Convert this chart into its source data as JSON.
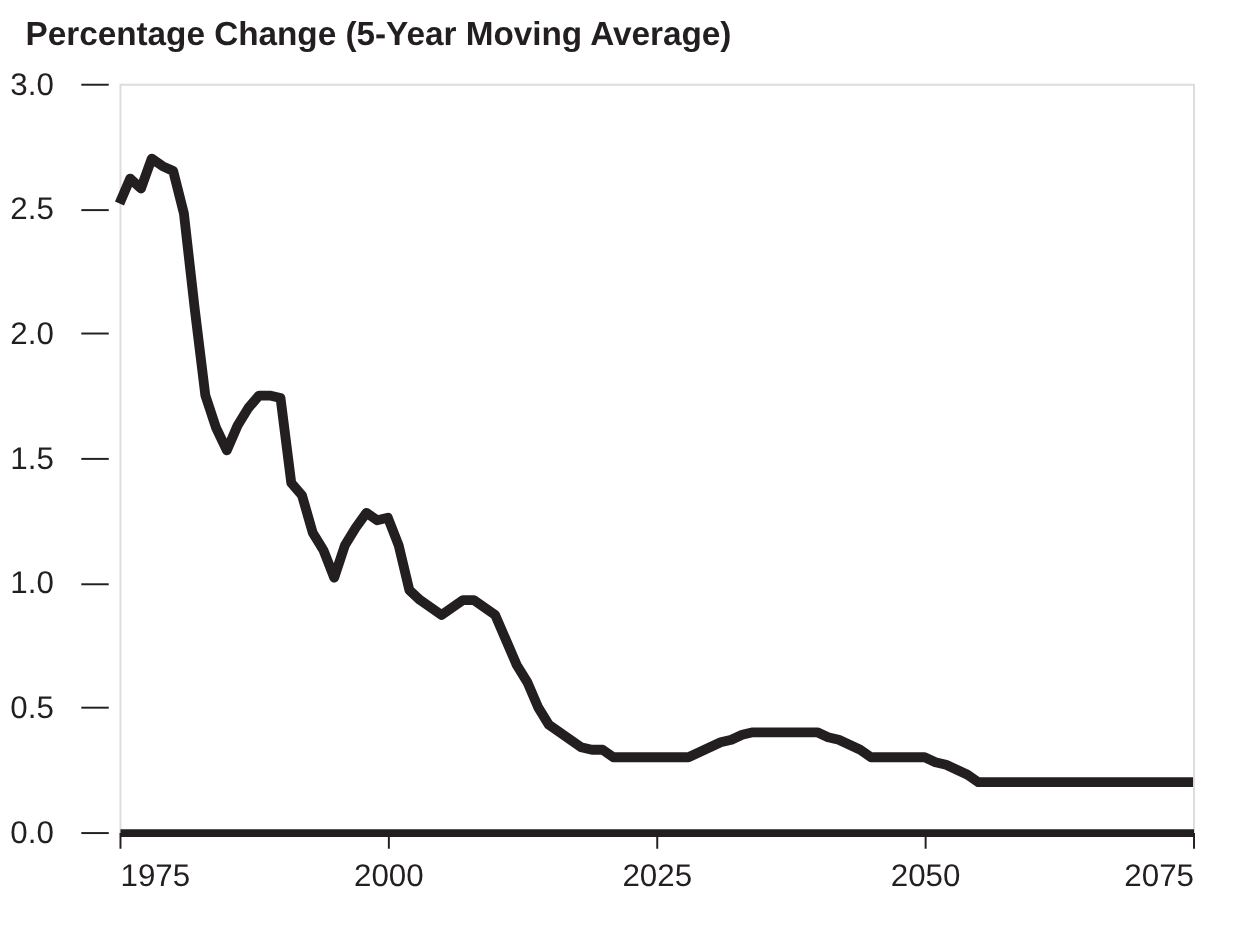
{
  "chart_data": {
    "type": "line",
    "title": "Percentage Change (5-Year Moving Average)",
    "x": [
      1975,
      1976,
      1977,
      1978,
      1979,
      1980,
      1981,
      1982,
      1983,
      1984,
      1985,
      1986,
      1987,
      1988,
      1989,
      1990,
      1991,
      1992,
      1993,
      1994,
      1995,
      1996,
      1997,
      1998,
      1999,
      2000,
      2001,
      2002,
      2003,
      2004,
      2005,
      2006,
      2007,
      2008,
      2009,
      2010,
      2011,
      2012,
      2013,
      2014,
      2015,
      2016,
      2017,
      2018,
      2019,
      2020,
      2021,
      2025,
      2028,
      2029,
      2030,
      2031,
      2032,
      2033,
      2034,
      2040,
      2041,
      2042,
      2043,
      2044,
      2045,
      2050,
      2051,
      2052,
      2053,
      2054,
      2055,
      2075
    ],
    "series": [
      {
        "color": "#231f20",
        "values": [
          2.52,
          2.62,
          2.58,
          2.7,
          2.67,
          2.65,
          2.48,
          2.1,
          1.75,
          1.62,
          1.53,
          1.63,
          1.7,
          1.75,
          1.75,
          1.74,
          1.4,
          1.35,
          1.2,
          1.13,
          1.02,
          1.15,
          1.22,
          1.28,
          1.25,
          1.26,
          1.15,
          0.97,
          0.93,
          0.9,
          0.87,
          0.9,
          0.93,
          0.93,
          0.9,
          0.87,
          0.77,
          0.67,
          0.6,
          0.5,
          0.43,
          0.4,
          0.37,
          0.34,
          0.33,
          0.33,
          0.3,
          0.3,
          0.3,
          0.32,
          0.34,
          0.36,
          0.37,
          0.39,
          0.4,
          0.4,
          0.38,
          0.37,
          0.35,
          0.33,
          0.3,
          0.3,
          0.28,
          0.27,
          0.25,
          0.23,
          0.2,
          0.2
        ]
      }
    ],
    "xlim": [
      1975,
      2075
    ],
    "xticks": [
      1975,
      2000,
      2025,
      2050,
      2075
    ],
    "ylim": [
      0,
      3
    ],
    "yticks": [
      {
        "value": 0,
        "label": "0.0"
      },
      {
        "value": 0.5,
        "label": "0.5"
      },
      {
        "value": 1,
        "label": "1.0"
      },
      {
        "value": 1.5,
        "label": "1.5"
      },
      {
        "value": 2,
        "label": "2.0"
      },
      {
        "value": 2.5,
        "label": "2.5"
      },
      {
        "value": 3,
        "label": "3.0"
      }
    ],
    "grid": false,
    "legend": false,
    "marker": "none",
    "line_style": "solid"
  }
}
